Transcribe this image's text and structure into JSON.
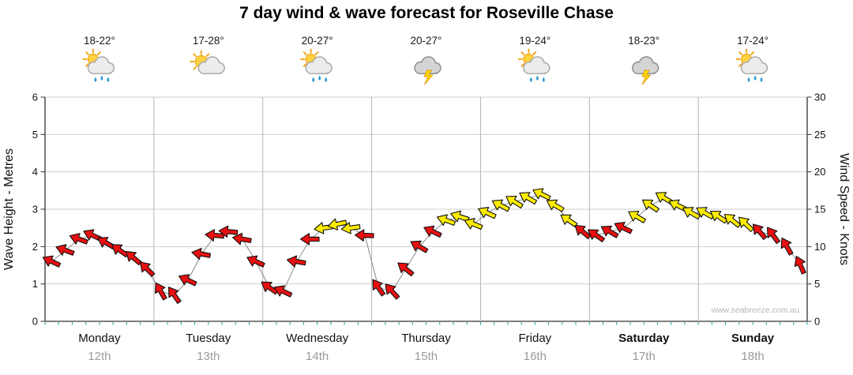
{
  "title": "7 day wind & wave forecast for Roseville Chase",
  "watermark": "www.seabreeze.com.au",
  "days": [
    {
      "name": "Monday",
      "date": "12th",
      "temp": "18-22°",
      "icon": "sun-cloud-rain",
      "bold": false
    },
    {
      "name": "Tuesday",
      "date": "13th",
      "temp": "17-28°",
      "icon": "sun-cloud",
      "bold": false
    },
    {
      "name": "Wednesday",
      "date": "14th",
      "temp": "20-27°",
      "icon": "sun-cloud-rain",
      "bold": false
    },
    {
      "name": "Thursday",
      "date": "15th",
      "temp": "20-27°",
      "icon": "storm",
      "bold": false
    },
    {
      "name": "Friday",
      "date": "16th",
      "temp": "19-24°",
      "icon": "sun-cloud-rain",
      "bold": false
    },
    {
      "name": "Saturday",
      "date": "17th",
      "temp": "18-23°",
      "icon": "storm",
      "bold": true
    },
    {
      "name": "Sunday",
      "date": "18th",
      "temp": "17-24°",
      "icon": "sun-cloud-rain",
      "bold": true
    }
  ],
  "chart_data": {
    "type": "line",
    "style": "wind-arrows",
    "title": "7 day wind & wave forecast for Roseville Chase",
    "x_categories": [
      "Monday",
      "Tuesday",
      "Wednesday",
      "Thursday",
      "Friday",
      "Saturday",
      "Sunday"
    ],
    "x_dates": [
      "12th",
      "13th",
      "14th",
      "15th",
      "16th",
      "17th",
      "18th"
    ],
    "points_per_day": 8,
    "hours_step": 3,
    "y_left": {
      "label": "Wave Height - Metres",
      "min": 0,
      "max": 6,
      "ticks": [
        0,
        1,
        2,
        3,
        4,
        5,
        6
      ]
    },
    "y_right": {
      "label": "Wind Speed - Knots",
      "min": 0,
      "max": 30,
      "ticks": [
        0,
        5,
        10,
        15,
        20,
        25,
        30
      ]
    },
    "grid": true,
    "legend": "none",
    "series_name": "Wind speed (knots)",
    "knots": [
      8,
      9.5,
      11,
      11.5,
      10.5,
      9.5,
      8.5,
      7,
      4,
      3.5,
      5.5,
      9,
      11.5,
      12,
      11,
      8,
      4.5,
      4,
      8,
      11,
      12.5,
      13,
      12.5,
      11.5,
      4.5,
      4,
      7,
      10,
      12,
      13.5,
      14,
      13,
      14.5,
      15.5,
      16,
      16.5,
      17,
      15.5,
      13.5,
      12,
      11.5,
      12,
      12.5,
      14,
      15.5,
      16.5,
      15.5,
      14.5,
      14.5,
      14,
      13.5,
      13,
      12,
      11.5,
      10,
      7.5
    ],
    "dirs": [
      205,
      200,
      200,
      205,
      210,
      215,
      220,
      225,
      240,
      235,
      205,
      190,
      185,
      185,
      190,
      205,
      215,
      205,
      190,
      180,
      172,
      168,
      172,
      182,
      235,
      228,
      218,
      210,
      205,
      200,
      198,
      202,
      205,
      208,
      212,
      210,
      206,
      210,
      214,
      220,
      214,
      210,
      206,
      210,
      214,
      211,
      206,
      210,
      210,
      214,
      218,
      224,
      229,
      234,
      240,
      246
    ],
    "colors": [
      "r",
      "r",
      "r",
      "r",
      "r",
      "r",
      "r",
      "r",
      "r",
      "r",
      "r",
      "r",
      "r",
      "r",
      "r",
      "r",
      "r",
      "r",
      "r",
      "r",
      "y",
      "y",
      "y",
      "r",
      "r",
      "r",
      "r",
      "r",
      "r",
      "y",
      "y",
      "y",
      "y",
      "y",
      "y",
      "y",
      "y",
      "y",
      "y",
      "r",
      "r",
      "r",
      "r",
      "y",
      "y",
      "y",
      "y",
      "y",
      "y",
      "y",
      "y",
      "y",
      "r",
      "r",
      "r",
      "r"
    ],
    "color_map": {
      "r": "#e81010",
      "y": "#ffec00"
    },
    "arrow_outline": "#101010",
    "line_color": "#8a8a8a"
  }
}
